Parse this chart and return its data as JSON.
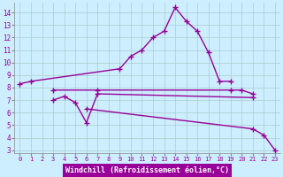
{
  "xlabel": "Windchill (Refroidissement éolien,°C)",
  "background_color": "#cceeff",
  "line_color": "#990099",
  "grid_color": "#aacccc",
  "xlim": [
    -0.5,
    23.5
  ],
  "ylim": [
    2.8,
    14.8
  ],
  "xticks": [
    0,
    1,
    2,
    3,
    4,
    5,
    6,
    7,
    8,
    9,
    10,
    11,
    12,
    13,
    14,
    15,
    16,
    17,
    18,
    19,
    20,
    21,
    22,
    23
  ],
  "yticks": [
    3,
    4,
    5,
    6,
    7,
    8,
    9,
    10,
    11,
    12,
    13,
    14
  ],
  "line1_x": [
    0,
    1,
    9,
    10,
    11,
    12,
    13,
    14,
    15,
    16,
    17,
    18,
    19
  ],
  "line1_y": [
    8.3,
    8.5,
    9.5,
    10.5,
    11.0,
    12.0,
    12.5,
    14.4,
    13.3,
    12.5,
    10.8,
    8.5,
    8.5
  ],
  "line2_x": [
    3,
    7,
    19,
    20,
    21
  ],
  "line2_y": [
    7.8,
    7.8,
    7.8,
    7.8,
    7.5
  ],
  "line3_x": [
    3,
    4,
    5,
    6,
    7,
    21
  ],
  "line3_y": [
    7.0,
    7.3,
    6.8,
    5.2,
    7.5,
    7.2
  ],
  "line4_x": [
    6,
    21,
    22,
    23
  ],
  "line4_y": [
    6.3,
    4.7,
    4.2,
    3.0
  ],
  "marker": "+",
  "markersize": 4,
  "linewidth": 1.0
}
